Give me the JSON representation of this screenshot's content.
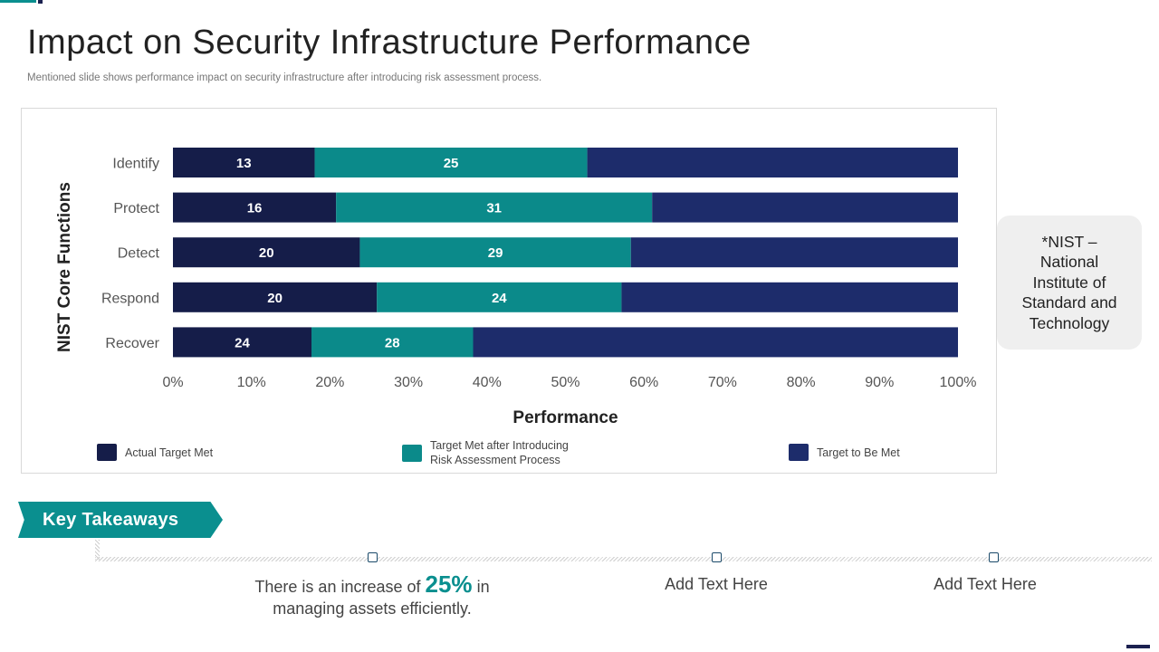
{
  "title": "Impact on Security Infrastructure Performance",
  "subtitle": "Mentioned slide shows performance impact on security infrastructure after introducing risk assessment process.",
  "colors": {
    "actual": "#151d49",
    "after": "#0b8a8a",
    "remaining": "#1d2c6b",
    "accent": "#0a8f8f"
  },
  "chart_data": {
    "type": "bar",
    "orientation": "horizontal",
    "stacked": "percent",
    "categories": [
      "Identify",
      "Protect",
      "Detect",
      "Respond",
      "Recover"
    ],
    "series": [
      {
        "name": "Actual Target  Met",
        "values": [
          13,
          16,
          20,
          20,
          24
        ],
        "color": "#151d49",
        "labeled": true
      },
      {
        "name": "Target  Met after Introducing Risk Assessment Process",
        "values": [
          25,
          31,
          29,
          24,
          28
        ],
        "color": "#0b8a8a",
        "labeled": true
      },
      {
        "name": "Target  to Be Met",
        "values": [
          34,
          30,
          35,
          33,
          84
        ],
        "color": "#1d2c6b",
        "labeled": false
      }
    ],
    "xlabel": "Performance",
    "ylabel": "NIST Core Functions",
    "xlim": [
      0,
      100
    ],
    "xticks": [
      "0%",
      "10%",
      "20%",
      "30%",
      "40%",
      "50%",
      "60%",
      "70%",
      "80%",
      "90%",
      "100%"
    ],
    "legend_position": "bottom"
  },
  "legend": {
    "item1": "Actual Target  Met",
    "item2_line1": "Target  Met after Introducing",
    "item2_line2": "Risk Assessment Process",
    "item3": "Target  to Be Met"
  },
  "note": "*NIST – National Institute of Standard and Technology",
  "key_takeaways": {
    "label": "Key Takeaways",
    "items": [
      {
        "prefix": "There is an increase of ",
        "highlight": "25%",
        "suffix": " in managing assets efficiently."
      },
      {
        "text": "Add Text Here"
      },
      {
        "text": "Add Text Here"
      }
    ]
  }
}
